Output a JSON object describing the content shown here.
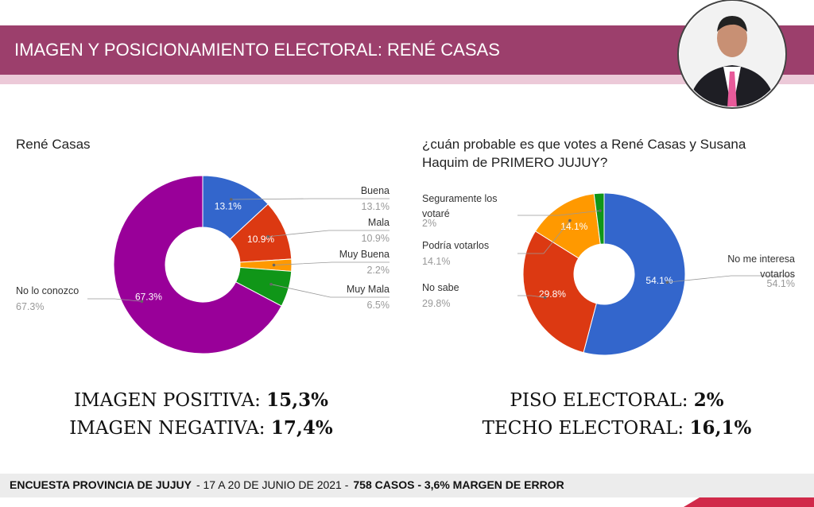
{
  "header": {
    "title": "IMAGEN Y POSICIONAMIENTO ELECTORAL: RENÉ CASAS"
  },
  "chart_data": [
    {
      "type": "pie",
      "title": "René Casas",
      "categories": [
        "Buena",
        "Mala",
        "Muy Buena",
        "Muy Mala",
        "No lo conozco"
      ],
      "values": [
        13.1,
        10.9,
        2.2,
        6.5,
        67.3
      ],
      "value_labels": [
        "13.1%",
        "10.9%",
        "2.2%",
        "6.5%",
        "67.3%"
      ],
      "colors": [
        "#3366cc",
        "#dc3912",
        "#ff9900",
        "#109618",
        "#990099"
      ]
    },
    {
      "type": "pie",
      "title": "¿cuán probable es que votes a René Casas y Susana Haquim de PRIMERO JUJUY?",
      "categories": [
        "No me interesa votarlos",
        "No sabe",
        "Podría votarlos",
        "Seguramente los votaré"
      ],
      "values": [
        54.1,
        29.8,
        14.1,
        2
      ],
      "value_labels": [
        "54.1%",
        "29.8%",
        "14.1%",
        "2%"
      ],
      "colors": [
        "#3366cc",
        "#dc3912",
        "#ff9900",
        "#109618"
      ]
    }
  ],
  "summary": [
    [
      {
        "label": "IMAGEN POSITIVA:",
        "value": "15,3%"
      },
      {
        "label": "IMAGEN NEGATIVA:",
        "value": "17,4%"
      }
    ],
    [
      {
        "label": "PISO ELECTORAL:",
        "value": "2%"
      },
      {
        "label": "TECHO ELECTORAL:",
        "value": "16,1%"
      }
    ]
  ],
  "footer": {
    "survey": "ENCUESTA PROVINCIA DE JUJUY",
    "dates": "- 17 A 20 DE JUNIO DE 2021 -",
    "cases": "758 CASOS - 3,6% MARGEN DE ERROR"
  }
}
